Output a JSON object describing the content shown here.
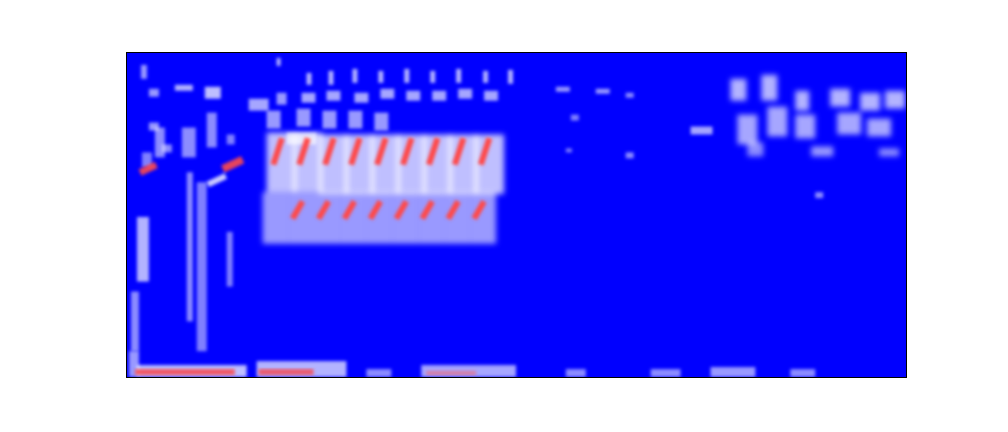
{
  "image": {
    "kind": "spectrogram",
    "colormap": "bwr",
    "colors": {
      "background": "#0000ff",
      "mid": "#ffffff",
      "high": "#ff3b3b",
      "figure_background": "#ffffff",
      "frame": "#000000"
    },
    "axes_visible": false,
    "tick_labels_visible": false
  }
}
